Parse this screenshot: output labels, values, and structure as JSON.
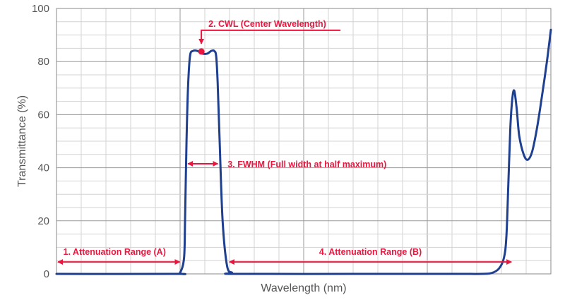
{
  "chart_data": {
    "type": "line",
    "title": "",
    "xlabel": "Wavelength (nm)",
    "ylabel": "Transmittance (%)",
    "ylim": [
      0,
      100
    ],
    "yticks": [
      0,
      20,
      40,
      60,
      80,
      100
    ],
    "xlim": [
      0,
      100
    ],
    "grid": true,
    "line_color": "#1f3f8f",
    "accent_color": "#e8173f",
    "series": [
      {
        "values_note": "",
        "x": [
          0,
          24,
          25,
          25.8,
          26,
          26.3,
          26.6,
          27,
          27.6,
          28.5,
          29.5,
          30.5,
          31.3,
          31.9,
          32.3,
          32.6,
          33,
          33.6,
          34.5,
          35.5,
          36,
          60,
          80,
          86,
          88,
          89.5,
          90.5,
          91,
          91.4,
          91.8,
          92.2,
          92.6,
          93.1,
          93.6,
          94.5,
          95.3,
          96.2,
          97.2,
          98.2,
          99.2,
          100
        ],
        "y": [
          0,
          0,
          0.5,
          6,
          20,
          50,
          70,
          82,
          84,
          84,
          83,
          83,
          84,
          84,
          82,
          72,
          50,
          20,
          3,
          0.5,
          0,
          0,
          0,
          0,
          0.3,
          2,
          6,
          14,
          34,
          55,
          66,
          69,
          62,
          52,
          45,
          43,
          46,
          55,
          67,
          80,
          92
        ]
      }
    ],
    "annotations": {
      "cwl": {
        "label": "2. CWL (Center Wavelength)",
        "x": 29.3,
        "y": 83.8
      },
      "fwhm": {
        "label": "3. FWHM (Full width at half maximum)",
        "x_start": 26.3,
        "x_end": 32.9,
        "y": 41.5
      },
      "range_a": {
        "label": "1. Attenuation Range (A)",
        "x_start": 0,
        "x_end": 25.2,
        "y": 4.5
      },
      "range_b": {
        "label": "4. Attenuation Range (B)",
        "x_start": 34.7,
        "x_end": 92.3,
        "y": 4.5
      }
    }
  }
}
